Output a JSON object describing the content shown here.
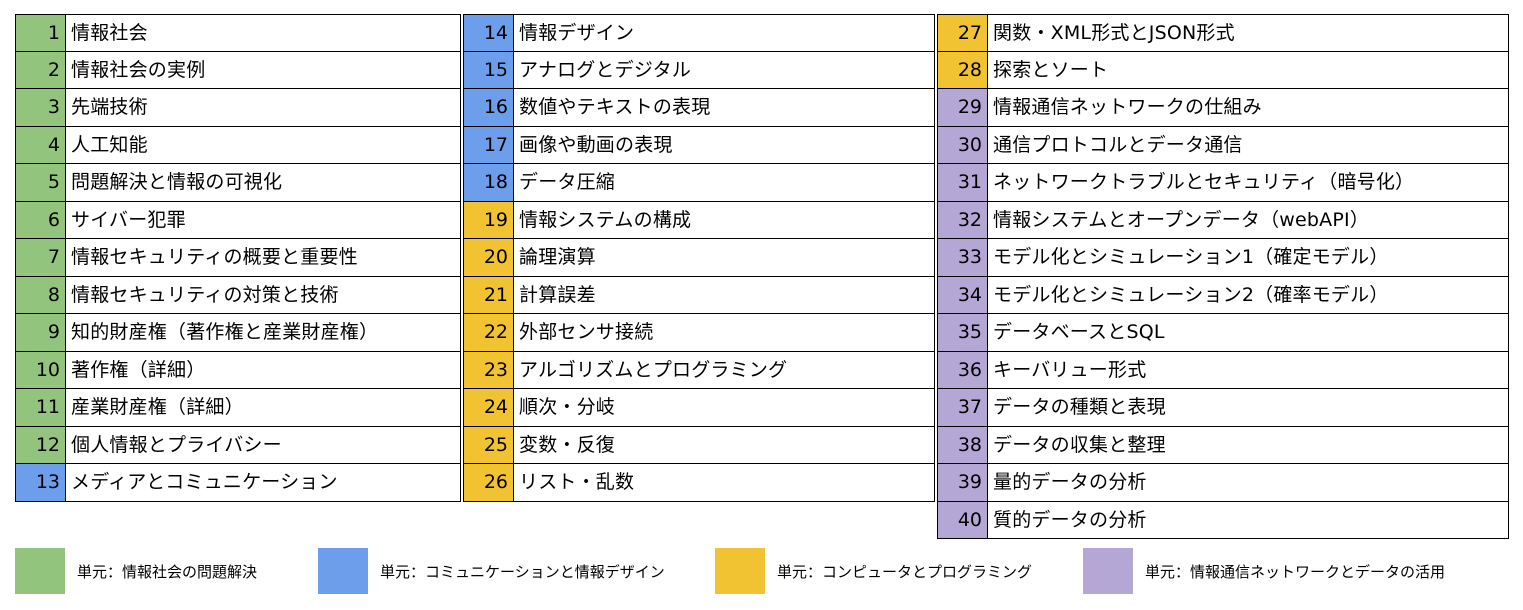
{
  "colors": {
    "green": "#93C47D",
    "blue": "#6D9EEB",
    "yellow": "#F1C232",
    "purple": "#B4A7D6"
  },
  "columns": [
    [
      {
        "num": "1",
        "label": "情報社会",
        "color": "green"
      },
      {
        "num": "2",
        "label": "情報社会の実例",
        "color": "green"
      },
      {
        "num": "3",
        "label": "先端技術",
        "color": "green"
      },
      {
        "num": "4",
        "label": "人工知能",
        "color": "green"
      },
      {
        "num": "5",
        "label": "問題解決と情報の可視化",
        "color": "green"
      },
      {
        "num": "6",
        "label": "サイバー犯罪",
        "color": "green"
      },
      {
        "num": "7",
        "label": "情報セキュリティの概要と重要性",
        "color": "green"
      },
      {
        "num": "8",
        "label": "情報セキュリティの対策と技術",
        "color": "green"
      },
      {
        "num": "9",
        "label": "知的財産権（著作権と産業財産権）",
        "color": "green"
      },
      {
        "num": "10",
        "label": "著作権（詳細）",
        "color": "green"
      },
      {
        "num": "11",
        "label": "産業財産権（詳細）",
        "color": "green"
      },
      {
        "num": "12",
        "label": "個人情報とプライバシー",
        "color": "green"
      },
      {
        "num": "13",
        "label": "メディアとコミュニケーション",
        "color": "blue"
      }
    ],
    [
      {
        "num": "14",
        "label": "情報デザイン",
        "color": "blue"
      },
      {
        "num": "15",
        "label": "アナログとデジタル",
        "color": "blue"
      },
      {
        "num": "16",
        "label": "数値やテキストの表現",
        "color": "blue"
      },
      {
        "num": "17",
        "label": "画像や動画の表現",
        "color": "blue"
      },
      {
        "num": "18",
        "label": "データ圧縮",
        "color": "blue"
      },
      {
        "num": "19",
        "label": "情報システムの構成",
        "color": "yellow"
      },
      {
        "num": "20",
        "label": "論理演算",
        "color": "yellow"
      },
      {
        "num": "21",
        "label": "計算誤差",
        "color": "yellow"
      },
      {
        "num": "22",
        "label": "外部センサ接続",
        "color": "yellow"
      },
      {
        "num": "23",
        "label": "アルゴリズムとプログラミング",
        "color": "yellow"
      },
      {
        "num": "24",
        "label": "順次・分岐",
        "color": "yellow"
      },
      {
        "num": "25",
        "label": "変数・反復",
        "color": "yellow"
      },
      {
        "num": "26",
        "label": "リスト・乱数",
        "color": "yellow"
      }
    ],
    [
      {
        "num": "27",
        "label": "関数・XML形式とJSON形式",
        "color": "yellow"
      },
      {
        "num": "28",
        "label": "探索とソート",
        "color": "yellow"
      },
      {
        "num": "29",
        "label": "情報通信ネットワークの仕組み",
        "color": "purple"
      },
      {
        "num": "30",
        "label": "通信プロトコルとデータ通信",
        "color": "purple"
      },
      {
        "num": "31",
        "label": "ネットワークトラブルとセキュリティ（暗号化）",
        "color": "purple"
      },
      {
        "num": "32",
        "label": "情報システムとオープンデータ（webAPI）",
        "color": "purple"
      },
      {
        "num": "33",
        "label": "モデル化とシミュレーション1（確定モデル）",
        "color": "purple"
      },
      {
        "num": "34",
        "label": "モデル化とシミュレーション2（確率モデル）",
        "color": "purple"
      },
      {
        "num": "35",
        "label": "データベースとSQL",
        "color": "purple"
      },
      {
        "num": "36",
        "label": "キーバリュー形式",
        "color": "purple"
      },
      {
        "num": "37",
        "label": "データの種類と表現",
        "color": "purple"
      },
      {
        "num": "38",
        "label": "データの収集と整理",
        "color": "purple"
      },
      {
        "num": "39",
        "label": "量的データの分析",
        "color": "purple"
      },
      {
        "num": "40",
        "label": "質的データの分析",
        "color": "purple"
      }
    ]
  ],
  "legend": [
    {
      "label": "単元：情報社会の問題解決",
      "color": "green"
    },
    {
      "label": "単元：コミュニケーションと情報デザイン",
      "color": "blue"
    },
    {
      "label": "単元：コンピュータとプログラミング",
      "color": "yellow"
    },
    {
      "label": "単元：情報通信ネットワークとデータの活用",
      "color": "purple"
    }
  ]
}
